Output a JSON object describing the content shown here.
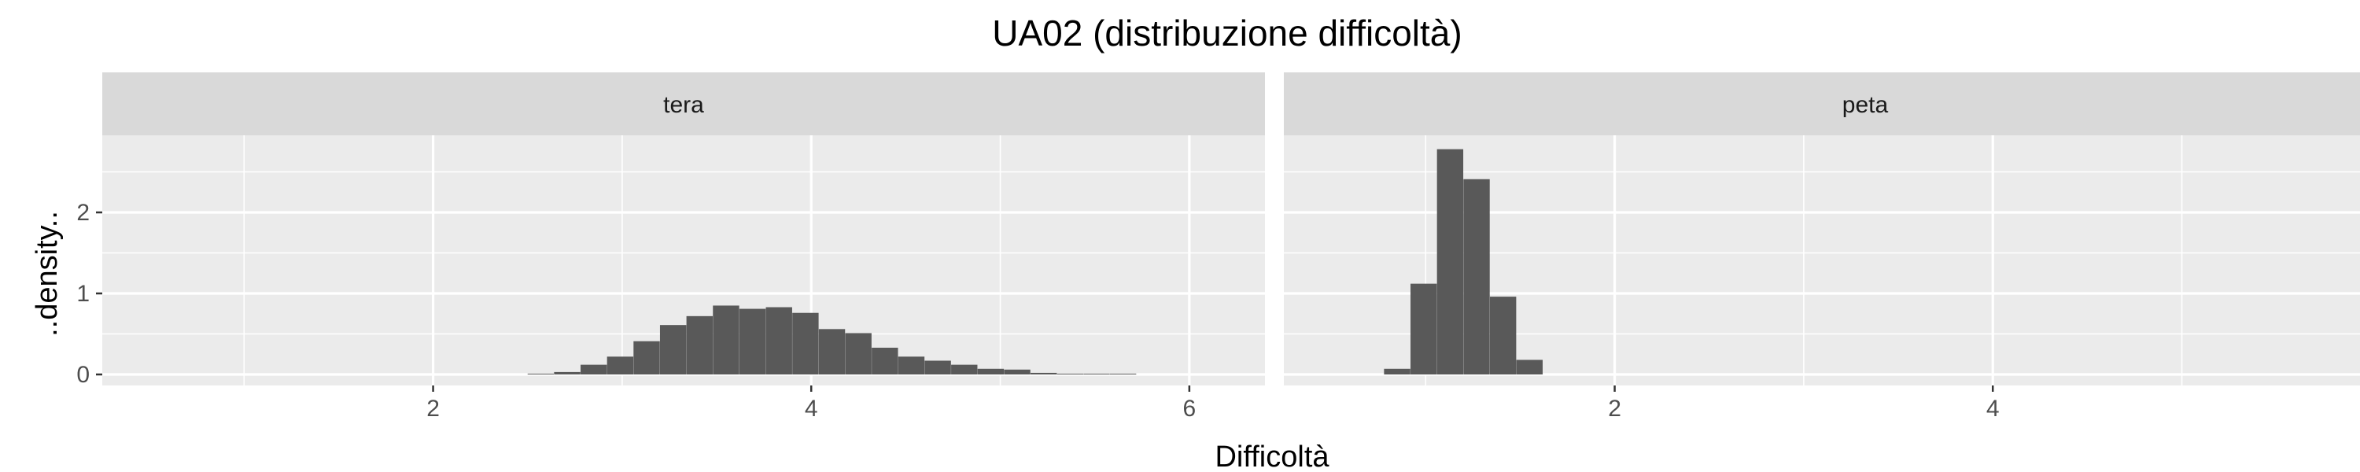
{
  "chart_data": {
    "type": "histogram",
    "title": "UA02 (distribuzione difficoltà)",
    "xlabel": "Difficoltà",
    "ylabel": "..density..",
    "xlim": [
      0.25,
      6.4
    ],
    "ylim": [
      0,
      3
    ],
    "x_ticks": [
      2,
      4,
      6
    ],
    "y_ticks": [
      0,
      1,
      2
    ],
    "bin_width": 0.139,
    "grid": true,
    "panel_background": "#ebebeb",
    "strip_background": "#d9d9d9",
    "bar_color": "#595959",
    "panels": [
      {
        "label": "tera",
        "bins": [
          {
            "x": 2.5,
            "y": 0.01
          },
          {
            "x": 2.64,
            "y": 0.03
          },
          {
            "x": 2.78,
            "y": 0.12
          },
          {
            "x": 2.92,
            "y": 0.22
          },
          {
            "x": 3.06,
            "y": 0.41
          },
          {
            "x": 3.2,
            "y": 0.61
          },
          {
            "x": 3.34,
            "y": 0.72
          },
          {
            "x": 3.48,
            "y": 0.85
          },
          {
            "x": 3.62,
            "y": 0.81
          },
          {
            "x": 3.76,
            "y": 0.83
          },
          {
            "x": 3.9,
            "y": 0.76
          },
          {
            "x": 4.04,
            "y": 0.56
          },
          {
            "x": 4.18,
            "y": 0.51
          },
          {
            "x": 4.32,
            "y": 0.33
          },
          {
            "x": 4.46,
            "y": 0.22
          },
          {
            "x": 4.6,
            "y": 0.17
          },
          {
            "x": 4.74,
            "y": 0.12
          },
          {
            "x": 4.88,
            "y": 0.07
          },
          {
            "x": 5.02,
            "y": 0.06
          },
          {
            "x": 5.16,
            "y": 0.02
          },
          {
            "x": 5.3,
            "y": 0.01
          },
          {
            "x": 5.44,
            "y": 0.01
          },
          {
            "x": 5.58,
            "y": 0.01
          }
        ]
      },
      {
        "label": "peta",
        "bins": [
          {
            "x": 0.78,
            "y": 0.07
          },
          {
            "x": 0.92,
            "y": 1.12
          },
          {
            "x": 1.06,
            "y": 2.78
          },
          {
            "x": 1.2,
            "y": 2.41
          },
          {
            "x": 1.34,
            "y": 0.96
          },
          {
            "x": 1.48,
            "y": 0.18
          }
        ]
      }
    ]
  }
}
